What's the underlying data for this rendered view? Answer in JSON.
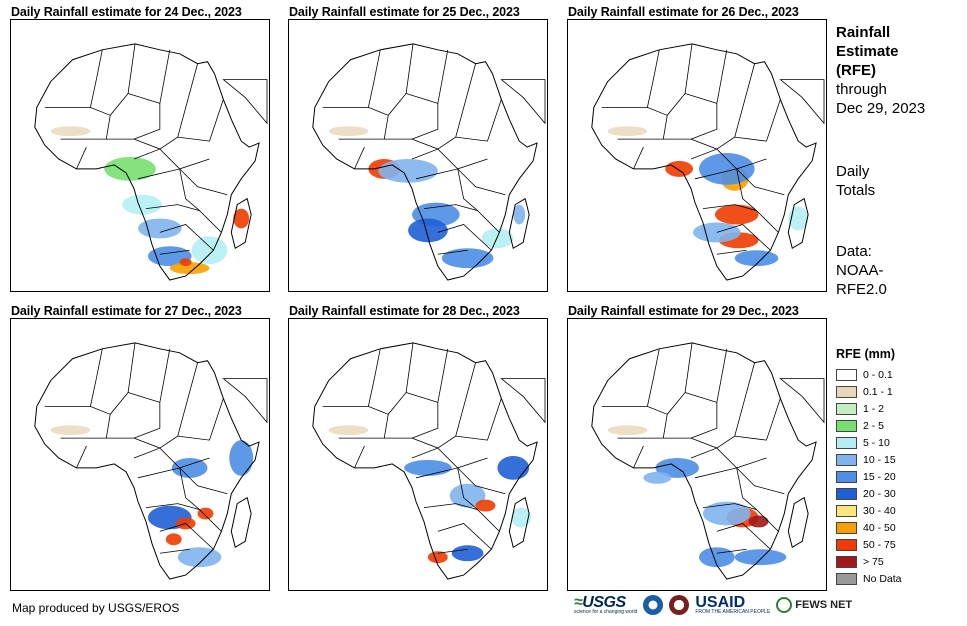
{
  "panels": [
    {
      "title": "Daily Rainfall estimate for 24 Dec., 2023"
    },
    {
      "title": "Daily Rainfall estimate for 25 Dec., 2023"
    },
    {
      "title": "Daily Rainfall estimate for 26 Dec., 2023"
    },
    {
      "title": "Daily Rainfall estimate for 27 Dec., 2023"
    },
    {
      "title": "Daily Rainfall estimate for 28 Dec., 2023"
    },
    {
      "title": "Daily Rainfall estimate for 29 Dec., 2023"
    }
  ],
  "sidebar": {
    "title_line1": "Rainfall",
    "title_line2": "Estimate",
    "title_line3": "(RFE)",
    "through_line1": "through",
    "through_line2": "Dec 29, 2023",
    "daily_line1": "Daily",
    "daily_line2": "Totals",
    "data_line1": "Data:",
    "data_line2": "NOAA-",
    "data_line3": "RFE2.0"
  },
  "legend": {
    "title": "RFE (mm)",
    "items": [
      {
        "label": "0 - 0.1",
        "color": "#ffffff"
      },
      {
        "label": "0.1 - 1",
        "color": "#e8d7b8"
      },
      {
        "label": "1 - 2",
        "color": "#c4eec0"
      },
      {
        "label": "2 - 5",
        "color": "#78e070"
      },
      {
        "label": "5 - 10",
        "color": "#b4eef4"
      },
      {
        "label": "10 - 15",
        "color": "#7fb4ee"
      },
      {
        "label": "15 - 20",
        "color": "#4d8ee6"
      },
      {
        "label": "20 - 30",
        "color": "#1f5fd6"
      },
      {
        "label": "30 - 40",
        "color": "#fce57a"
      },
      {
        "label": "40 - 50",
        "color": "#f5a000"
      },
      {
        "label": "50 - 75",
        "color": "#f03c00"
      },
      {
        "label": "> 75",
        "color": "#a01818"
      },
      {
        "label": "No Data",
        "color": "#999999"
      }
    ]
  },
  "footer": {
    "credit": "Map produced by USGS/EROS",
    "logo_usgs": "USGS",
    "logo_usgs_tag": "science for a changing world",
    "logo_usaid": "USAID",
    "logo_usaid_tag": "FROM THE AMERICAN PEOPLE",
    "logo_fews": "FEWS NET"
  }
}
